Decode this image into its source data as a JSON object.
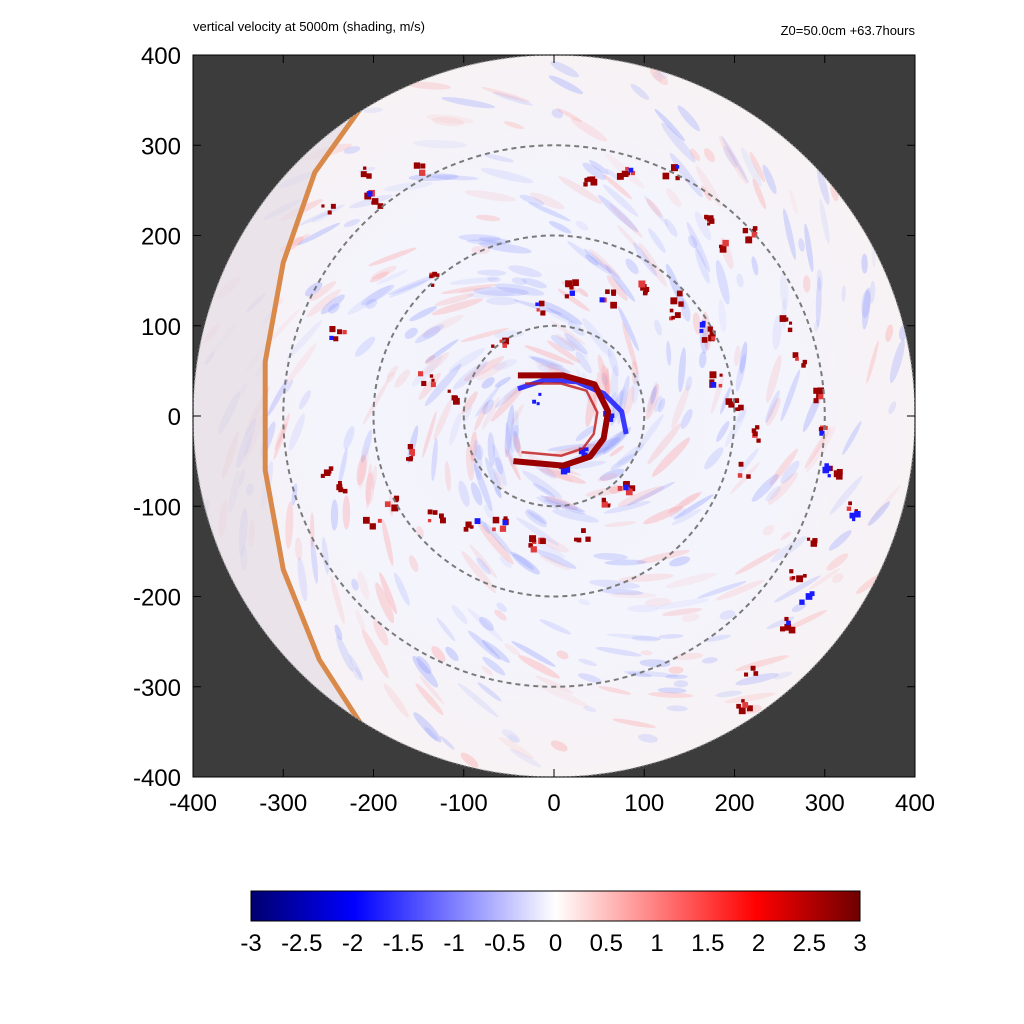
{
  "header": {
    "title_left": "vertical velocity at 5000m (shading, m/s)",
    "title_right": "Z0=50.0cm  +63.7hours"
  },
  "colors": {
    "background_outside": "#3c3c3c",
    "ring": "#7a7a7a",
    "updraft": "#9a0000",
    "downdraft": "#1a1aff",
    "edge_band": "#d9894a"
  },
  "chart_data": {
    "type": "heatmap",
    "title": "vertical velocity at 5000m (shading, m/s)",
    "subtitle": "Z0=50.0cm  +63.7hours",
    "xlim": [
      -400,
      400
    ],
    "ylim": [
      -400,
      400
    ],
    "x_ticks": [
      -400,
      -300,
      -200,
      -100,
      0,
      100,
      200,
      300,
      400
    ],
    "y_ticks": [
      -400,
      -300,
      -200,
      -100,
      0,
      100,
      200,
      300,
      400
    ],
    "x_tick_labels": [
      "-400",
      "-300",
      "-200",
      "-100",
      "0",
      "100",
      "200",
      "300",
      "400"
    ],
    "y_tick_labels": [
      "400",
      "300",
      "200",
      "100",
      "0",
      "-100",
      "-200",
      "-300",
      "-400"
    ],
    "domain_radius": 400,
    "reference_circles_radii": [
      100,
      200,
      300
    ],
    "colorbar": {
      "min": -3,
      "max": 3,
      "tick_values": [
        -3,
        -2.5,
        -2,
        -1.5,
        -1,
        -0.5,
        0,
        0.5,
        1,
        1.5,
        2,
        2.5,
        3
      ],
      "tick_labels": [
        "-3",
        "-2.5",
        "-2",
        "-1.5",
        "-1",
        "-0.5",
        "0",
        "0.5",
        "1",
        "1.5",
        "2",
        "2.5",
        "3"
      ],
      "colors": [
        "#00006e",
        "#0000ff",
        "#ffffff",
        "#ff0000",
        "#6e0000"
      ]
    },
    "features": {
      "eyewall_updraft_arc": [
        [
          -40,
          45
        ],
        [
          10,
          45
        ],
        [
          45,
          35
        ],
        [
          60,
          5
        ],
        [
          55,
          -25
        ],
        [
          40,
          -45
        ],
        [
          10,
          -55
        ],
        [
          -45,
          -50
        ]
      ],
      "eyewall_downdraft_arc": [
        [
          -40,
          30
        ],
        [
          -10,
          40
        ],
        [
          25,
          38
        ],
        [
          55,
          25
        ],
        [
          75,
          5
        ],
        [
          80,
          -20
        ]
      ],
      "strong_updraft_cells": [
        [
          -140,
          40
        ],
        [
          -110,
          20
        ],
        [
          -160,
          -40
        ],
        [
          -180,
          -95
        ],
        [
          -130,
          -110
        ],
        [
          -90,
          -120
        ],
        [
          -60,
          -120
        ],
        [
          -20,
          -140
        ],
        [
          30,
          -130
        ],
        [
          60,
          -100
        ],
        [
          80,
          -80
        ],
        [
          -60,
          80
        ],
        [
          -20,
          120
        ],
        [
          20,
          140
        ],
        [
          60,
          130
        ],
        [
          100,
          140
        ],
        [
          130,
          110
        ],
        [
          140,
          130
        ],
        [
          170,
          90
        ],
        [
          180,
          40
        ],
        [
          200,
          10
        ],
        [
          220,
          -20
        ],
        [
          210,
          -60
        ],
        [
          -130,
          150
        ],
        [
          -150,
          270
        ],
        [
          -200,
          240
        ],
        [
          -250,
          230
        ],
        [
          -210,
          270
        ],
        [
          40,
          260
        ],
        [
          80,
          270
        ],
        [
          130,
          270
        ],
        [
          170,
          220
        ],
        [
          190,
          190
        ],
        [
          220,
          200
        ],
        [
          -240,
          90
        ],
        [
          -250,
          -60
        ],
        [
          -230,
          -80
        ],
        [
          -200,
          -120
        ],
        [
          260,
          100
        ],
        [
          270,
          60
        ],
        [
          290,
          20
        ],
        [
          300,
          -20
        ],
        [
          310,
          -60
        ],
        [
          330,
          -100
        ],
        [
          290,
          -140
        ],
        [
          270,
          -180
        ],
        [
          260,
          -230
        ],
        [
          220,
          -280
        ],
        [
          210,
          -320
        ],
        [
          200,
          -360
        ]
      ],
      "strong_downdraft_cells": [
        [
          -20,
          20
        ],
        [
          10,
          -60
        ],
        [
          30,
          -40
        ],
        [
          60,
          0
        ],
        [
          300,
          -60
        ],
        [
          330,
          -110
        ],
        [
          280,
          -200
        ],
        [
          160,
          100
        ]
      ],
      "edge_band_curve": [
        [
          -215,
          340
        ],
        [
          -265,
          270
        ],
        [
          -300,
          170
        ],
        [
          -320,
          60
        ],
        [
          -320,
          -60
        ],
        [
          -300,
          -170
        ],
        [
          -260,
          -270
        ],
        [
          -205,
          -355
        ]
      ]
    }
  }
}
